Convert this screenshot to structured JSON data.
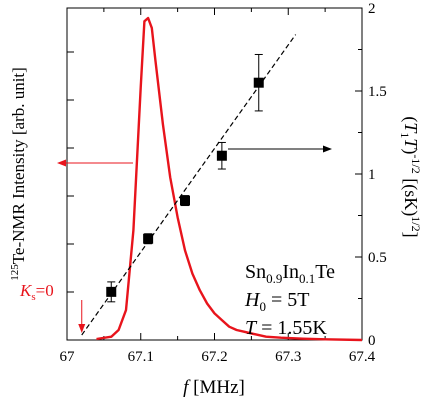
{
  "chart_data": {
    "type": "line",
    "xlabel_symbol": "f",
    "xlabel_unit": " [MHz]",
    "xlim": [
      67.0,
      67.4
    ],
    "x_ticks": [
      67,
      67.1,
      67.2,
      67.3,
      67.4
    ],
    "x_tick_labels": [
      "67",
      "67.1",
      "67.2",
      "67.3",
      "67.4"
    ],
    "ylabel_left_sup": "125",
    "ylabel_left_text": "Te-NMR Intensity [arb. unit]",
    "ylabel_right_p1": "(",
    "ylabel_right_T1": "T",
    "ylabel_right_sub1": "1",
    "ylabel_right_T2": "T",
    "ylabel_right_p2": ")",
    "ylabel_right_sup1": "-1/2",
    "ylabel_right_unit": " [(sK)",
    "ylabel_right_sup2": "1/2",
    "ylabel_right_close": "]",
    "ylim_right": [
      0,
      2
    ],
    "y_right_ticks": [
      0,
      0.5,
      1,
      1.5,
      2
    ],
    "y_right_tick_labels": [
      "0",
      "0.5",
      "1",
      "1.5",
      "2"
    ],
    "series": [
      {
        "kind": "spectrum",
        "axis": "left",
        "color": "#e8141c",
        "x": [
          67.04,
          67.06,
          67.07,
          67.08,
          67.09,
          67.1,
          67.105,
          67.11,
          67.115,
          67.12,
          67.13,
          67.14,
          67.15,
          67.16,
          67.17,
          67.18,
          67.19,
          67.2,
          67.21,
          67.22,
          67.23,
          67.24,
          67.25,
          67.27,
          67.29,
          67.32,
          67.35,
          67.4
        ],
        "y": [
          0.003,
          0.01,
          0.03,
          0.09,
          0.33,
          0.76,
          0.96,
          0.97,
          0.94,
          0.84,
          0.65,
          0.49,
          0.37,
          0.27,
          0.2,
          0.15,
          0.11,
          0.08,
          0.06,
          0.04,
          0.03,
          0.025,
          0.02,
          0.01,
          0.007,
          0.004,
          0.002,
          0.0
        ]
      },
      {
        "kind": "points",
        "axis": "right",
        "color": "#000000",
        "x": [
          67.06,
          67.11,
          67.16,
          67.21,
          67.26
        ],
        "y": [
          0.29,
          0.61,
          0.84,
          1.11,
          1.55
        ],
        "yerr": [
          0.06,
          0.03,
          0.03,
          0.08,
          0.17
        ]
      },
      {
        "kind": "fit",
        "axis": "right",
        "color": "#000000",
        "x": [
          67.02,
          67.31
        ],
        "y": [
          0.03,
          1.84
        ]
      }
    ],
    "annotations": {
      "ks_K": "K",
      "ks_sub": "s",
      "ks_eq": "=0",
      "ks_x": 67.02,
      "compound_base": "Sn",
      "compound_sub1": "0.9",
      "compound_mid": "In",
      "compound_sub2": "0.1",
      "compound_end": "Te",
      "field_H": "H",
      "field_sub": "0",
      "field_value": " = 5T",
      "temp_T": "T",
      "temp_value": " = 1.55K"
    }
  }
}
